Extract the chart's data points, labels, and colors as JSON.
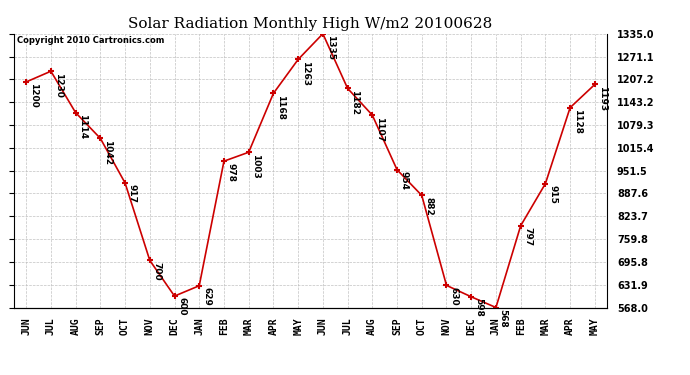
{
  "title": "Solar Radiation Monthly High W/m2 20100628",
  "copyright": "Copyright 2010 Cartronics.com",
  "months": [
    "JUN",
    "JUL",
    "AUG",
    "SEP",
    "OCT",
    "NOV",
    "DEC",
    "JAN",
    "FEB",
    "MAR",
    "APR",
    "MAY",
    "JUN",
    "JUL",
    "AUG",
    "SEP",
    "OCT",
    "NOV",
    "DEC",
    "JAN",
    "FEB",
    "MAR",
    "APR",
    "MAY"
  ],
  "values": [
    1200,
    1230,
    1114,
    1042,
    917,
    700,
    600,
    629,
    978,
    1003,
    1168,
    1263,
    1335,
    1182,
    1107,
    954,
    882,
    630,
    598,
    568,
    797,
    915,
    1128,
    1193
  ],
  "line_color": "#cc0000",
  "marker_color": "#cc0000",
  "bg_color": "#ffffff",
  "grid_color": "#bbbbbb",
  "title_fontsize": 11,
  "label_fontsize": 6.5,
  "tick_fontsize": 7,
  "copyright_fontsize": 6,
  "ylim": [
    568.0,
    1335.0
  ],
  "yticks": [
    568.0,
    631.9,
    695.8,
    759.8,
    823.7,
    887.6,
    951.5,
    1015.4,
    1079.3,
    1143.2,
    1207.2,
    1271.1,
    1335.0
  ],
  "ytick_labels": [
    "568.0",
    "631.9",
    "695.8",
    "759.8",
    "823.7",
    "887.6",
    "951.5",
    "1015.4",
    "1079.3",
    "1143.2",
    "1207.2",
    "1271.1",
    "1335.0"
  ]
}
